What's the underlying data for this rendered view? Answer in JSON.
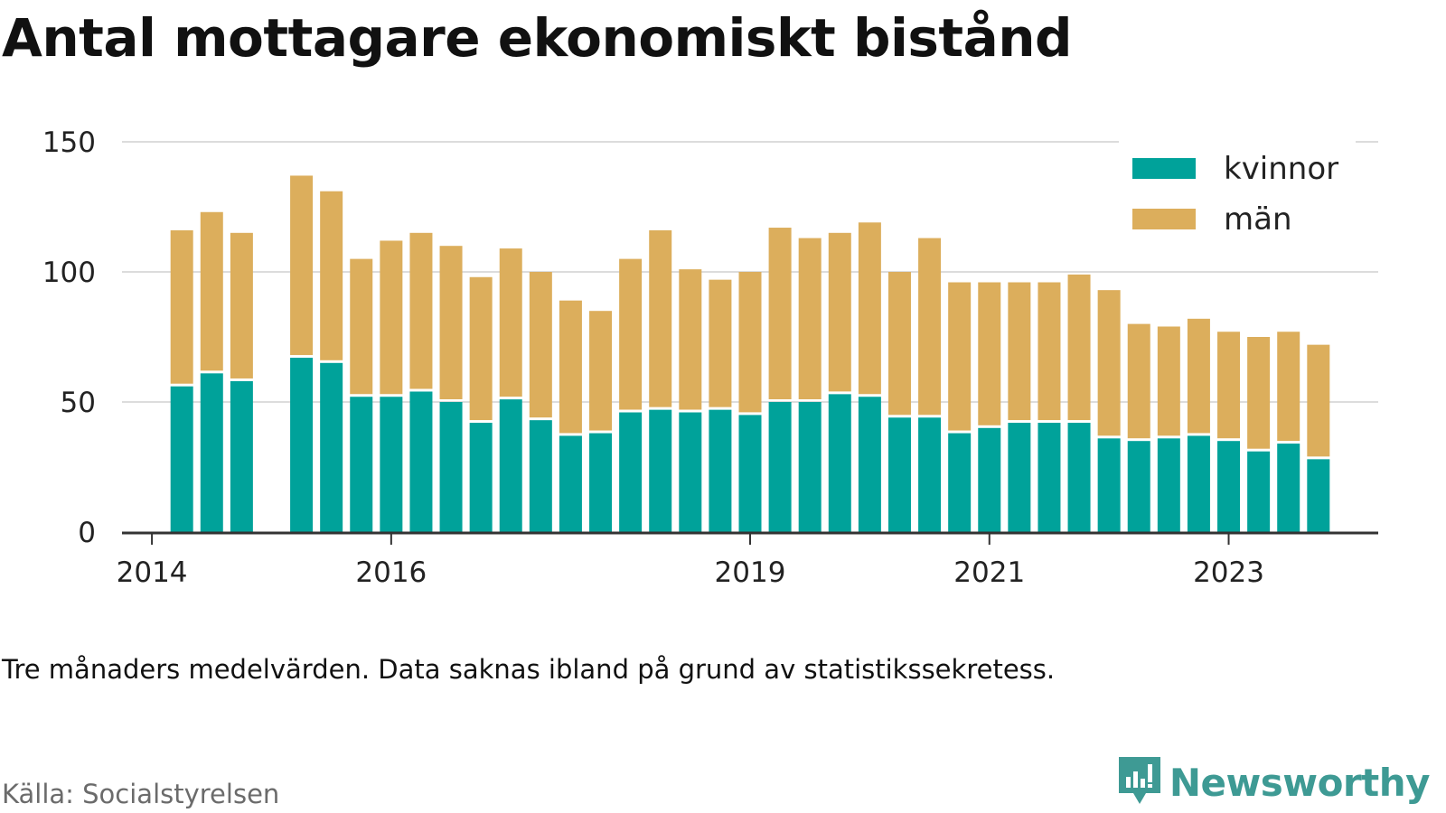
{
  "title": "Antal mottagare ekonomiskt bistånd",
  "note": "Tre månaders medelvärden. Data saknas ibland på grund av statistikssekretess.",
  "source": "Källa: Socialstyrelsen",
  "brand": {
    "name": "Newsworthy",
    "icon": "newsworthy-logo-icon",
    "color": "#3e9a94"
  },
  "colors": {
    "kvinnor": "#00a29a",
    "man": "#dcae5c",
    "grid": "#dcdcdc",
    "axis": "#333333"
  },
  "chart_data": {
    "type": "bar",
    "stacked": true,
    "title": "",
    "xlabel": "",
    "ylabel": "",
    "ylim": [
      0,
      150
    ],
    "yticks": [
      0,
      50,
      100,
      150
    ],
    "xticks": [
      2014,
      2016,
      2019,
      2021,
      2023
    ],
    "grid": true,
    "legend_position": "top-right",
    "x": [
      2014.25,
      2014.5,
      2014.75,
      2015.25,
      2015.5,
      2015.75,
      2016.0,
      2016.25,
      2016.5,
      2016.75,
      2017.0,
      2017.25,
      2017.5,
      2017.75,
      2018.0,
      2018.25,
      2018.5,
      2018.75,
      2019.0,
      2019.25,
      2019.5,
      2019.75,
      2020.0,
      2020.25,
      2020.5,
      2020.75,
      2021.0,
      2021.25,
      2021.5,
      2021.75,
      2022.0,
      2022.25,
      2022.5,
      2022.75,
      2023.0,
      2023.25,
      2023.5
    ],
    "series": [
      {
        "name": "kvinnor",
        "values": [
          56,
          61,
          58,
          67,
          65,
          52,
          52,
          54,
          50,
          42,
          51,
          43,
          37,
          38,
          46,
          47,
          46,
          47,
          45,
          50,
          50,
          53,
          52,
          44,
          44,
          38,
          40,
          42,
          42,
          42,
          36,
          35,
          36,
          37,
          35,
          31,
          34
        ]
      },
      {
        "name": "män",
        "values": [
          60,
          62,
          57,
          70,
          66,
          53,
          60,
          61,
          60,
          56,
          58,
          57,
          52,
          47,
          59,
          69,
          55,
          50,
          55,
          67,
          63,
          62,
          67,
          56,
          69,
          58,
          56,
          54,
          54,
          57,
          57,
          45,
          43,
          45,
          42,
          44,
          43
        ]
      }
    ],
    "extra_x": [
      2023.75
    ],
    "extra_values": {
      "kvinnor": 28,
      "man": 44
    }
  }
}
